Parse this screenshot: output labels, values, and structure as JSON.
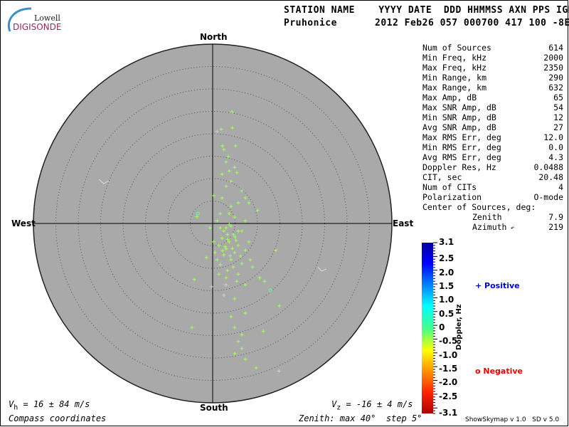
{
  "logo": {
    "line1": "Lowell",
    "line2": "DIGISONDE"
  },
  "header": {
    "labels": "STATION NAME    YYYY DATE  DDD HHMMSS AXN PPS IGP",
    "station": "Pruhonice",
    "values": "2012 Feb26 057 000700 417 100 -8E"
  },
  "stats": [
    {
      "label": "Num of Sources",
      "value": "614"
    },
    {
      "label": "Min Freq, kHz",
      "value": "2000"
    },
    {
      "label": "Max Freq, kHz",
      "value": "2350"
    },
    {
      "label": "Min Range, km",
      "value": "290"
    },
    {
      "label": "Max Range, km",
      "value": "632"
    },
    {
      "label": "Max Amp, dB",
      "value": "65"
    },
    {
      "label": "Max SNR Amp, dB",
      "value": "54"
    },
    {
      "label": "Min SNR Amp, dB",
      "value": "12"
    },
    {
      "label": "Avg SNR Amp, dB",
      "value": "27"
    },
    {
      "label": "Max RMS Err, deg",
      "value": "12.0"
    },
    {
      "label": "Min RMS Err, deg",
      "value": "0.0"
    },
    {
      "label": "Avg RMS Err, deg",
      "value": "4.3"
    },
    {
      "label": "Doppler Res, Hz",
      "value": "0.0488"
    },
    {
      "label": "CIT, sec",
      "value": "20.48"
    },
    {
      "label": "Num of CITs",
      "value": "4"
    },
    {
      "label": "Polarization",
      "value": "O-mode"
    }
  ],
  "center": {
    "title": "Center of Sources, deg:",
    "zenith_label": "Zenith",
    "zenith": "7.9",
    "azimuth_label": "Azimuth",
    "azimuth": "219"
  },
  "footer": {
    "vh": "V",
    "vh_sub": "h",
    "vh_value": " = 16 ± 84 m/s",
    "vz": "V",
    "vz_sub": "z",
    "vz_value": " = -16 ± 4 m/s",
    "coords": "Compass coordinates",
    "zenith_info": "Zenith: max 40°  step 5°",
    "version": "ShowSkymap v 1.0   SD v 5.0"
  },
  "legend": {
    "positive": "Positive",
    "negative": "Negative",
    "positive_color": "#0000dd",
    "negative_color": "#ee0000"
  },
  "chart_data": {
    "type": "scatter",
    "projection": "polar-skymap",
    "directions": {
      "north": "North",
      "south": "South",
      "east": "East",
      "west": "West"
    },
    "zenith_max_deg": 40,
    "ring_step_deg": 5,
    "colorbar": {
      "label": "Doppler, Hz",
      "range": [
        -3.1,
        3.1
      ],
      "ticks": [
        "3.1",
        "2.5",
        "2.0",
        "1.5",
        "1.0",
        "0.5",
        "0",
        "-0.5",
        "-1.0",
        "-1.5",
        "-2.0",
        "-2.5",
        "-3.1"
      ],
      "colormap": "jet"
    },
    "point_fields": [
      "east_deg",
      "north_deg",
      "doppler_hz",
      "sign"
    ],
    "points": [
      [
        4.3,
        24.9,
        0.2,
        "+"
      ],
      [
        1.9,
        21.0,
        0.2,
        "+"
      ],
      [
        1.0,
        20.5,
        null,
        "+"
      ],
      [
        4.4,
        21.3,
        0.2,
        "+"
      ],
      [
        2.2,
        17.3,
        0.2,
        "+"
      ],
      [
        2.5,
        16.5,
        0.2,
        "+"
      ],
      [
        5.1,
        17.3,
        0.2,
        "+"
      ],
      [
        3.5,
        14.9,
        0.2,
        "+"
      ],
      [
        3.0,
        13.7,
        0.2,
        "+"
      ],
      [
        4.9,
        12.5,
        0.2,
        "+"
      ],
      [
        2.1,
        11.0,
        0.2,
        "+"
      ],
      [
        3.7,
        11.7,
        0.2,
        "+"
      ],
      [
        5.4,
        11.3,
        0.2,
        "+"
      ],
      [
        4.1,
        9.4,
        0.2,
        "+"
      ],
      [
        3.0,
        8.3,
        0.2,
        "+"
      ],
      [
        6.5,
        7.3,
        0.2,
        "+"
      ],
      [
        7.3,
        5.7,
        0.2,
        "+"
      ],
      [
        2.1,
        5.7,
        0.2,
        "+"
      ],
      [
        0.2,
        6.2,
        0.2,
        "+"
      ],
      [
        5.7,
        4.6,
        0.2,
        "+"
      ],
      [
        4.1,
        3.8,
        0.2,
        "+"
      ],
      [
        8.1,
        4.6,
        0.2,
        "+"
      ],
      [
        3.7,
        2.2,
        0.2,
        "+"
      ],
      [
        1.7,
        2.2,
        0.2,
        "+"
      ],
      [
        4.9,
        1.4,
        0.2,
        "+"
      ],
      [
        7.3,
        0.6,
        0.2,
        "+"
      ],
      [
        1.0,
        0.6,
        0.2,
        "+"
      ],
      [
        10.0,
        2.9,
        0.2,
        "+"
      ],
      [
        -3.3,
        2.2,
        -0.2,
        "o"
      ],
      [
        -0.6,
        -1.0,
        0.2,
        "+"
      ],
      [
        3.0,
        -1.0,
        0.2,
        "+"
      ],
      [
        4.6,
        -2.5,
        0.2,
        "+"
      ],
      [
        6.5,
        -1.7,
        0.2,
        "+"
      ],
      [
        2.1,
        -3.3,
        0.2,
        "+"
      ],
      [
        3.7,
        -4.1,
        0.2,
        "+"
      ],
      [
        5.7,
        -4.9,
        0.2,
        "+"
      ],
      [
        1.4,
        -4.9,
        0.2,
        "+"
      ],
      [
        3.0,
        -5.7,
        0.2,
        "+"
      ],
      [
        4.9,
        -6.5,
        0.2,
        "+"
      ],
      [
        7.3,
        -6.0,
        0.2,
        "+"
      ],
      [
        0.5,
        -6.5,
        0.2,
        "+"
      ],
      [
        -1.4,
        -7.6,
        0.2,
        "+"
      ],
      [
        4.1,
        -8.1,
        0.2,
        "+"
      ],
      [
        6.5,
        -8.9,
        0.2,
        "+"
      ],
      [
        1.7,
        -9.2,
        0.2,
        "+"
      ],
      [
        8.9,
        -9.7,
        0.2,
        "+"
      ],
      [
        14.1,
        -6.0,
        0.2,
        "+"
      ],
      [
        3.3,
        -10.5,
        0.2,
        "+"
      ],
      [
        5.7,
        -11.3,
        0.2,
        "+"
      ],
      [
        10.5,
        -12.1,
        0.2,
        "+"
      ],
      [
        -4.1,
        -12.5,
        0.2,
        "+"
      ],
      [
        -0.2,
        -14.1,
        null,
        "+"
      ],
      [
        3.0,
        -13.7,
        null,
        "+"
      ],
      [
        7.3,
        -13.7,
        0.2,
        "+"
      ],
      [
        11.6,
        -12.9,
        0.2,
        "+"
      ],
      [
        12.9,
        -14.9,
        -0.2,
        "o"
      ],
      [
        2.5,
        -16.0,
        null,
        "+"
      ],
      [
        4.9,
        -16.8,
        0.2,
        "+"
      ],
      [
        7.3,
        -20.0,
        0.2,
        "+"
      ],
      [
        4.1,
        -20.8,
        0.2,
        "+"
      ],
      [
        14.9,
        -18.4,
        0.2,
        "+"
      ],
      [
        4.9,
        -23.2,
        0.2,
        "+"
      ],
      [
        6.5,
        -24.8,
        0.2,
        "+"
      ],
      [
        11.3,
        -24.0,
        0.2,
        "+"
      ],
      [
        -4.6,
        -23.2,
        0.2,
        "+"
      ],
      [
        5.7,
        -26.3,
        0.2,
        "+"
      ],
      [
        6.5,
        -27.9,
        0.2,
        "+"
      ],
      [
        7.3,
        -30.3,
        0.2,
        "+"
      ],
      [
        4.9,
        -29.0,
        0.2,
        "+"
      ],
      [
        9.7,
        -32.2,
        0.2,
        "+"
      ],
      [
        14.8,
        -32.9,
        null,
        "+"
      ],
      [
        2.5,
        -1.7,
        0.2,
        "+"
      ],
      [
        4.1,
        -0.6,
        0.2,
        "+"
      ],
      [
        5.2,
        -3.8,
        0.2,
        "+"
      ],
      [
        2.5,
        -7.0,
        0.2,
        "+"
      ],
      [
        1.0,
        -8.1,
        0.2,
        "+"
      ],
      [
        6.2,
        -7.3,
        0.2,
        "+"
      ],
      [
        8.1,
        -4.1,
        0.2,
        "+"
      ],
      [
        3.3,
        -2.5,
        0.2,
        "+"
      ],
      [
        1.7,
        -1.0,
        0.2,
        "+"
      ],
      [
        4.6,
        -9.7,
        0.2,
        "+"
      ],
      [
        0.2,
        -4.1,
        0.2,
        "+"
      ],
      [
        8.4,
        -8.1,
        0.2,
        "+"
      ],
      [
        3.0,
        -12.1,
        0.2,
        "+"
      ],
      [
        5.4,
        -12.9,
        0.2,
        "+"
      ],
      [
        1.4,
        -11.3,
        0.2,
        "+"
      ],
      [
        3.7,
        -0.2,
        0.2,
        "+"
      ],
      [
        5.7,
        -1.7,
        0.2,
        "+"
      ],
      [
        -3.5,
        1.5,
        0.2,
        "+"
      ],
      [
        2.8,
        -5.2,
        0.2,
        "+"
      ],
      [
        4.4,
        -5.6,
        0.2,
        "+"
      ],
      [
        3.9,
        -7.2,
        0.2,
        "+"
      ],
      [
        2.2,
        -6.1,
        0.2,
        "+"
      ],
      [
        5.0,
        -3.0,
        0.2,
        "+"
      ],
      [
        3.4,
        -3.6,
        0.2,
        "+"
      ]
    ]
  }
}
